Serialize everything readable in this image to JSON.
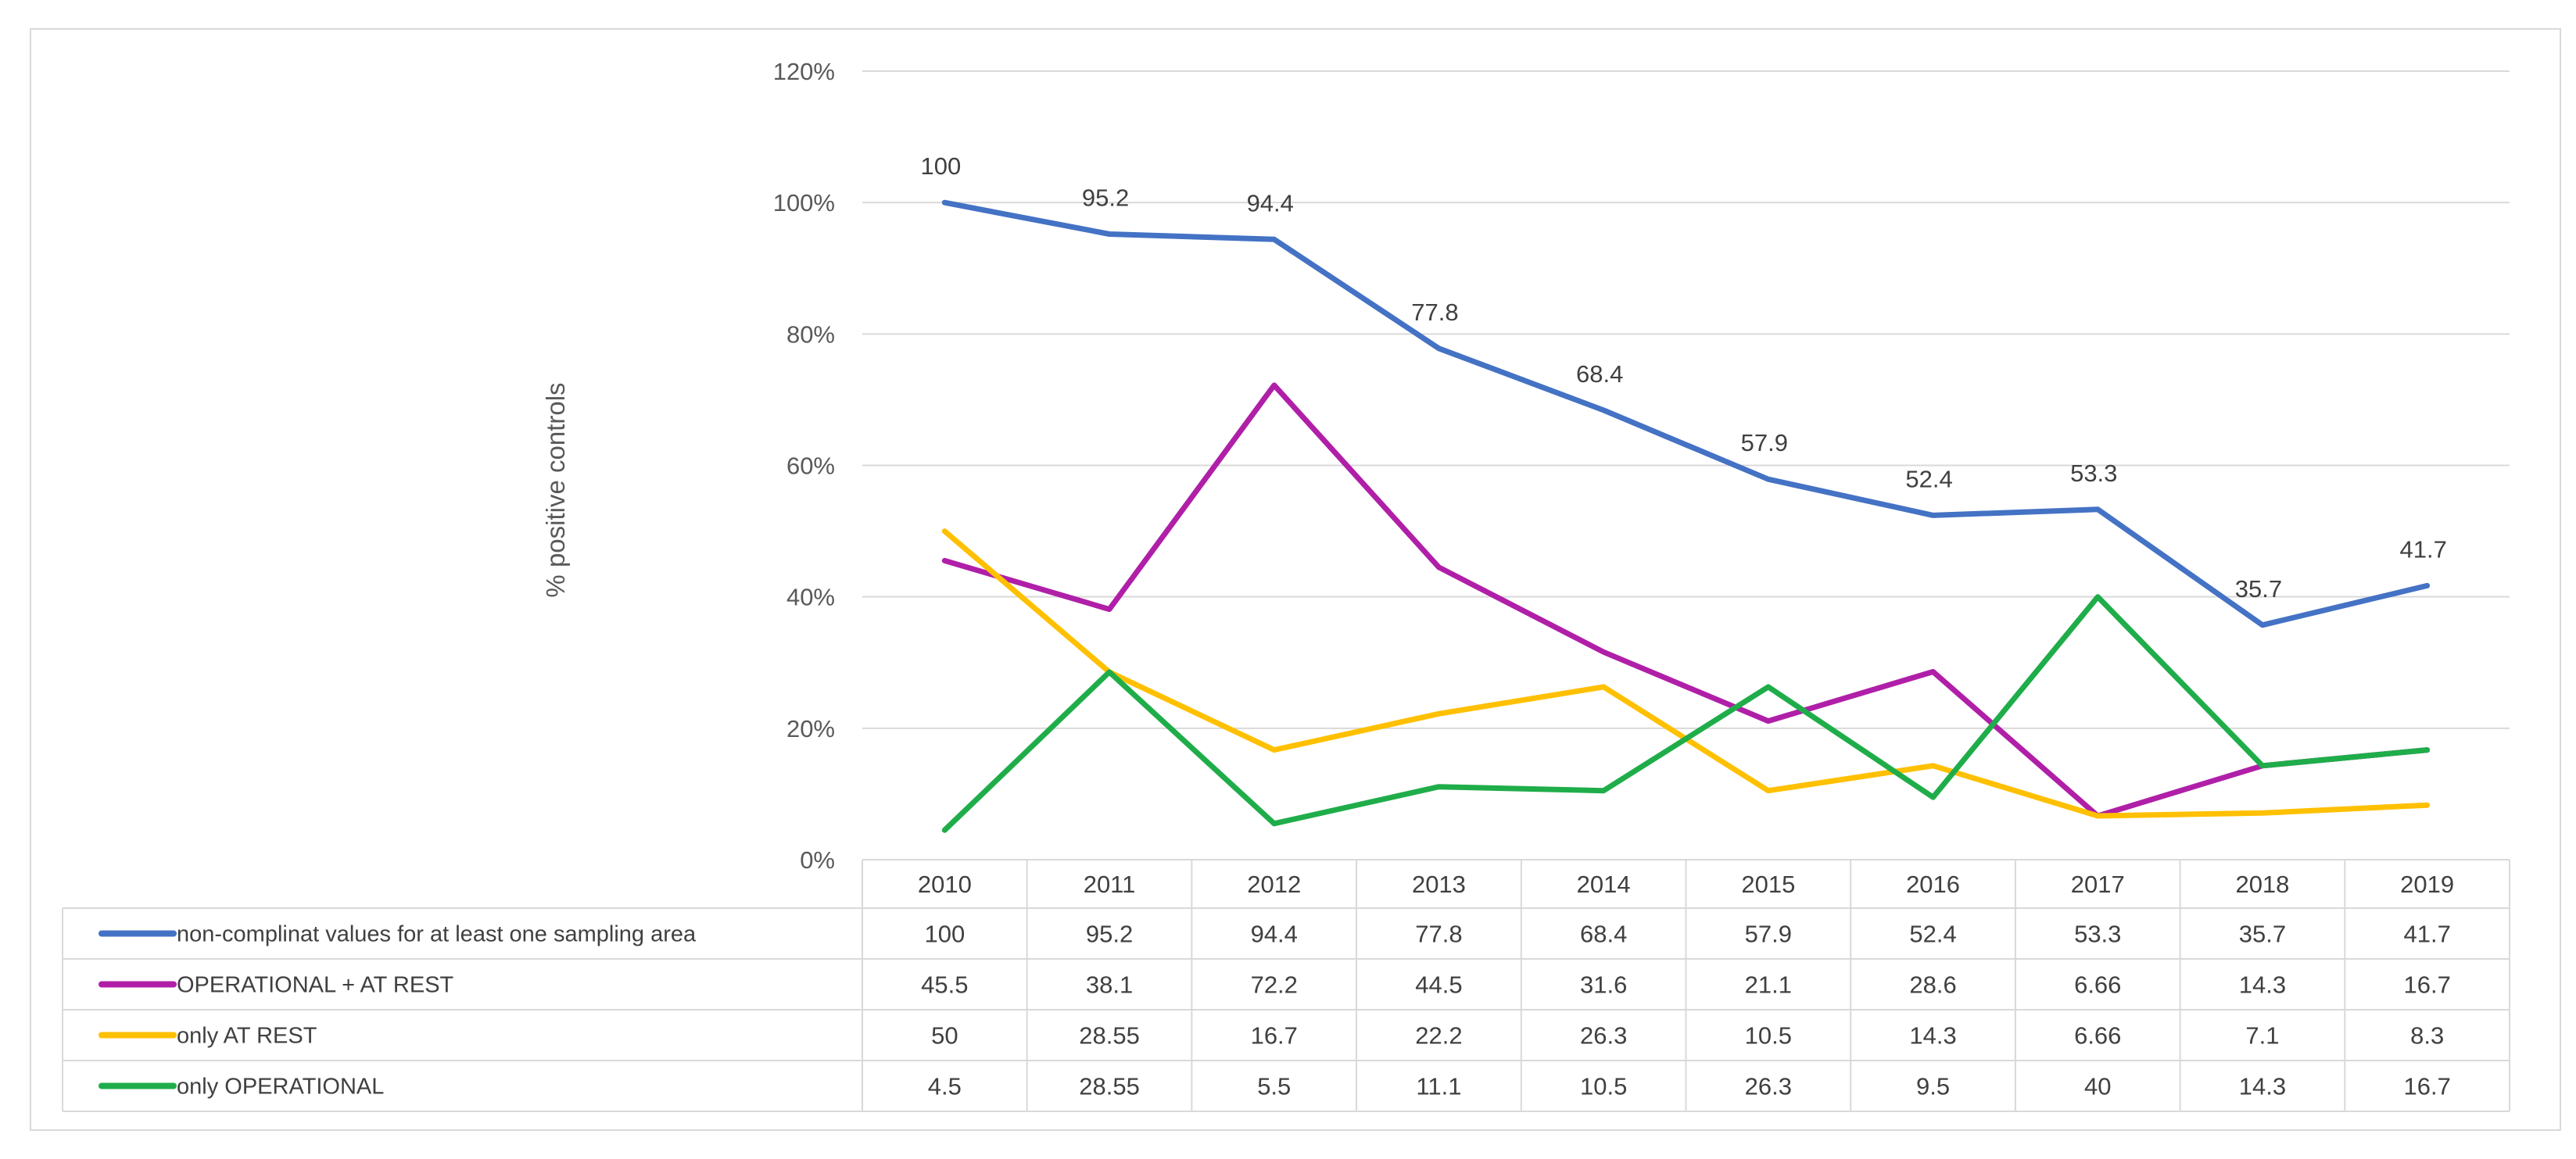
{
  "chart_data": {
    "type": "line",
    "title": "",
    "xlabel": "",
    "ylabel": "% positive controls",
    "ylim": [
      0,
      120
    ],
    "y_ticks": [
      "0%",
      "20%",
      "40%",
      "60%",
      "80%",
      "100%",
      "120%"
    ],
    "y_tick_values": [
      0,
      20,
      40,
      60,
      80,
      100,
      120
    ],
    "categories": [
      "2010",
      "2011",
      "2012",
      "2013",
      "2014",
      "2015",
      "2016",
      "2017",
      "2018",
      "2019"
    ],
    "grid": true,
    "legend": "data-table",
    "series": [
      {
        "name": "non-complinat values for at least one sampling area",
        "color": "#4472c4",
        "values": [
          100,
          95.2,
          94.4,
          77.8,
          68.4,
          57.9,
          52.4,
          53.3,
          35.7,
          41.7
        ],
        "labels": [
          "100",
          "95.2",
          "94.4",
          "77.8",
          "68.4",
          "57.9",
          "52.4",
          "53.3",
          "35.7",
          "41.7"
        ],
        "show_data_labels": true
      },
      {
        "name": "OPERATIONAL + AT REST",
        "color": "#b01fa8",
        "values": [
          45.5,
          38.1,
          72.2,
          44.5,
          31.6,
          21.1,
          28.6,
          6.66,
          14.3,
          16.7
        ],
        "labels": [
          "45.5",
          "38.1",
          "72.2",
          "44.5",
          "31.6",
          "21.1",
          "28.6",
          "6.66",
          "14.3",
          "16.7"
        ],
        "show_data_labels": false
      },
      {
        "name": "only AT REST",
        "color": "#ffc000",
        "values": [
          50,
          28.55,
          16.7,
          22.2,
          26.3,
          10.5,
          14.3,
          6.66,
          7.1,
          8.3
        ],
        "labels": [
          "50",
          "28.55",
          "16.7",
          "22.2",
          "26.3",
          "10.5",
          "14.3",
          "6.66",
          "7.1",
          "8.3"
        ],
        "show_data_labels": false
      },
      {
        "name": " only OPERATIONAL",
        "color": "#1fad4a",
        "values": [
          4.5,
          28.55,
          5.5,
          11.1,
          10.5,
          26.3,
          9.5,
          40,
          14.3,
          16.7
        ],
        "labels": [
          "4.5",
          "28.55",
          "5.5",
          "11.1",
          "10.5",
          "26.3",
          "9.5",
          "40",
          "14.3",
          "16.7"
        ],
        "show_data_labels": false
      }
    ]
  }
}
